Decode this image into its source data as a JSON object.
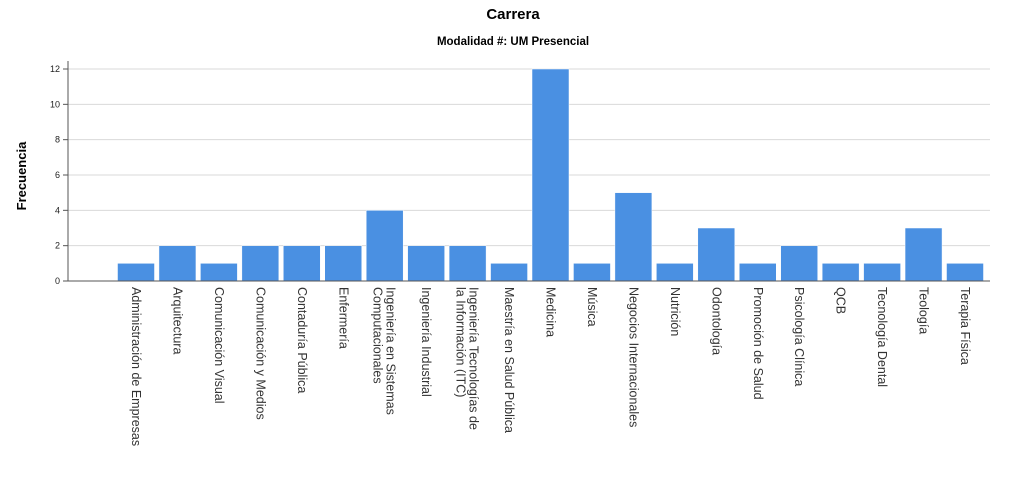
{
  "chart_data": {
    "type": "bar",
    "title": "Carrera",
    "subtitle": "Modalidad #: UM Presencial",
    "xlabel": "",
    "ylabel": "Frecuencia",
    "ylim": [
      0,
      12
    ],
    "yticks": [
      0,
      2,
      4,
      6,
      8,
      10,
      12
    ],
    "grid": true,
    "bar_color": "#4a90e2",
    "categories": [
      "Administración de Empresas",
      "Arquitectura",
      "Comunicación Visual",
      "Comunicación y Medios",
      "Contaduría Pública",
      "Enfermería",
      "Ingeniería en Sistemas Computacionales",
      "Ingeniería Industrial",
      "Ingeniería Tecnologías de la Información (ITC)",
      "Maestría en Salud Pública",
      "Medicina",
      "Música",
      "Negocios Internacionales",
      "Nutrición",
      "Odontología",
      "Promoción de Salud",
      "Psicología Clínica",
      "QCB",
      "Tecnología Dental",
      "Teología",
      "Terapia Física"
    ],
    "values": [
      1,
      2,
      1,
      2,
      2,
      2,
      4,
      2,
      2,
      1,
      12,
      1,
      5,
      1,
      3,
      1,
      2,
      1,
      1,
      3,
      1
    ]
  }
}
